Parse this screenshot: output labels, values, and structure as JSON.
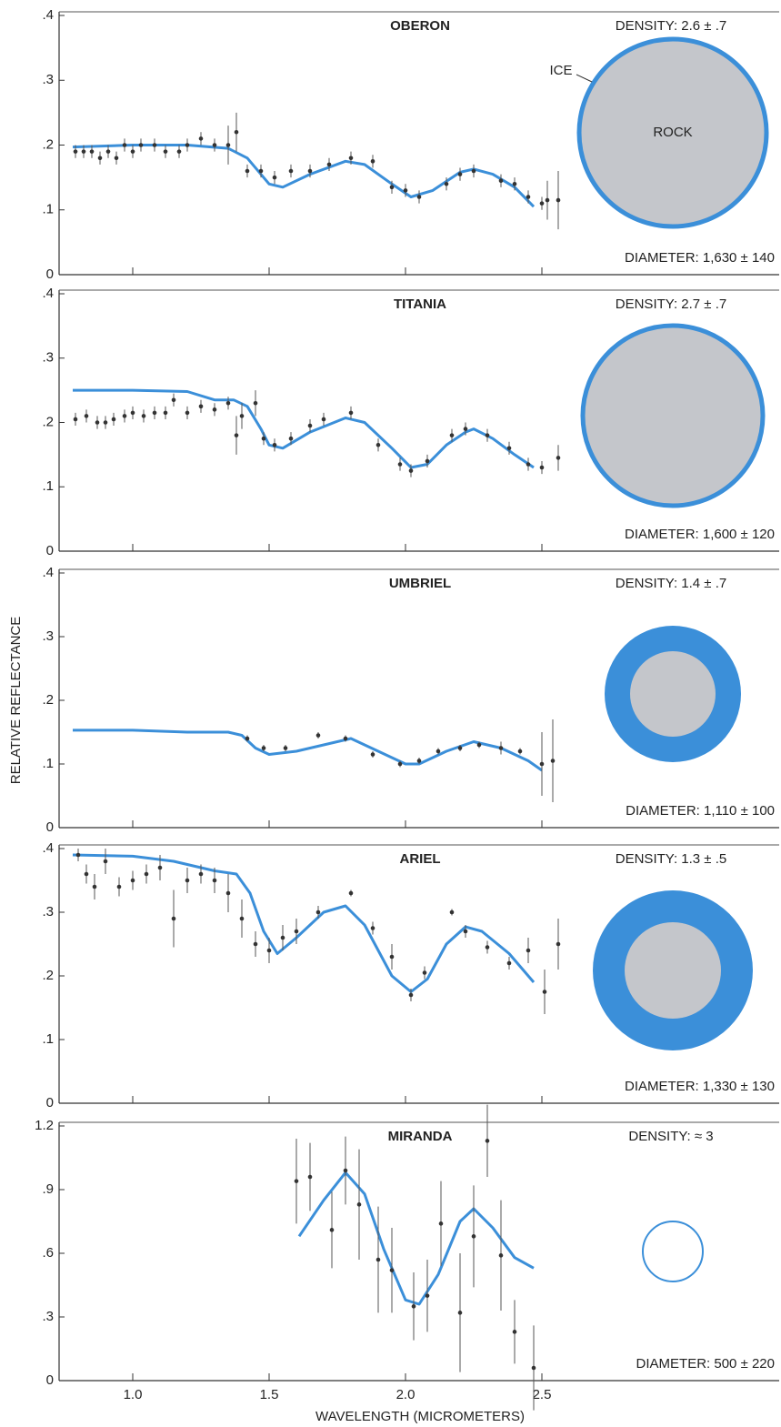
{
  "ylabel": "RELATIVE REFLECTANCE",
  "xlabel": "WAVELENGTH (MICROMETERS)",
  "chart_data": [
    {
      "type": "line",
      "title": "OBERON",
      "density": "DENSITY: 2.6 ± .7",
      "diameter": "DIAMETER: 1,630 ± 140",
      "annotations": [
        "ICE",
        "ROCK"
      ],
      "xlim": [
        0.73,
        3.37
      ],
      "ylim": [
        0,
        0.4
      ],
      "xticks": [
        1,
        1.5,
        2,
        2.5
      ],
      "yticks": [
        0,
        {
          "value": 0.1,
          "label": ".1"
        },
        {
          "value": 0.2,
          "label": ".2"
        },
        {
          "value": 0.3,
          "label": ".3"
        },
        {
          "value": 0.4,
          "label": ".4"
        }
      ],
      "series": [
        {
          "type": "line",
          "color": "#3b8fd9",
          "x": [
            0.78,
            1.0,
            1.2,
            1.35,
            1.42,
            1.5,
            1.55,
            1.65,
            1.78,
            1.85,
            1.95,
            2.02,
            2.1,
            2.2,
            2.25,
            2.32,
            2.4,
            2.47
          ],
          "values": [
            0.197,
            0.2,
            0.2,
            0.195,
            0.18,
            0.14,
            0.135,
            0.155,
            0.175,
            0.17,
            0.14,
            0.12,
            0.13,
            0.158,
            0.163,
            0.155,
            0.135,
            0.105
          ]
        },
        {
          "type": "scatter",
          "color": "#333333",
          "x": [
            0.79,
            0.82,
            0.85,
            0.88,
            0.91,
            0.94,
            0.97,
            1.0,
            1.03,
            1.08,
            1.12,
            1.17,
            1.2,
            1.25,
            1.3,
            1.35,
            1.38,
            1.42,
            1.47,
            1.52,
            1.58,
            1.65,
            1.72,
            1.8,
            1.88,
            1.95,
            2.0,
            2.05,
            2.15,
            2.2,
            2.25,
            2.35,
            2.4,
            2.45,
            2.5,
            2.52,
            2.56
          ],
          "values": [
            0.19,
            0.19,
            0.19,
            0.18,
            0.19,
            0.18,
            0.2,
            0.19,
            0.2,
            0.2,
            0.19,
            0.19,
            0.2,
            0.21,
            0.2,
            0.2,
            0.22,
            0.16,
            0.16,
            0.15,
            0.16,
            0.16,
            0.17,
            0.18,
            0.175,
            0.135,
            0.13,
            0.12,
            0.14,
            0.155,
            0.16,
            0.145,
            0.14,
            0.12,
            0.11,
            0.115,
            0.115
          ],
          "errors": [
            0.01,
            0.01,
            0.01,
            0.01,
            0.01,
            0.01,
            0.01,
            0.01,
            0.01,
            0.01,
            0.01,
            0.01,
            0.01,
            0.01,
            0.01,
            0.03,
            0.03,
            0.01,
            0.01,
            0.01,
            0.01,
            0.01,
            0.01,
            0.01,
            0.01,
            0.01,
            0.01,
            0.01,
            0.01,
            0.01,
            0.01,
            0.01,
            0.01,
            0.01,
            0.01,
            0.03,
            0.045
          ]
        }
      ]
    },
    {
      "type": "line",
      "title": "TITANIA",
      "density": "DENSITY: 2.7 ± .7",
      "diameter": "DIAMETER: 1,600 ± 120",
      "xlim": [
        0.73,
        3.37
      ],
      "ylim": [
        0,
        0.4
      ],
      "xticks": [
        1,
        1.5,
        2,
        2.5
      ],
      "yticks": [
        0,
        {
          "value": 0.1,
          "label": ".1"
        },
        {
          "value": 0.2,
          "label": ".2"
        },
        {
          "value": 0.3,
          "label": ".3"
        },
        {
          "value": 0.4,
          "label": ".4"
        }
      ],
      "series": [
        {
          "type": "line",
          "color": "#3b8fd9",
          "x": [
            0.78,
            1.0,
            1.2,
            1.3,
            1.37,
            1.42,
            1.47,
            1.5,
            1.55,
            1.65,
            1.78,
            1.85,
            1.95,
            2.02,
            2.08,
            2.15,
            2.22,
            2.25,
            2.32,
            2.4,
            2.47
          ],
          "values": [
            0.25,
            0.25,
            0.248,
            0.235,
            0.235,
            0.225,
            0.19,
            0.165,
            0.16,
            0.185,
            0.207,
            0.2,
            0.16,
            0.13,
            0.135,
            0.165,
            0.185,
            0.19,
            0.175,
            0.15,
            0.13
          ]
        },
        {
          "type": "scatter",
          "color": "#333333",
          "x": [
            0.79,
            0.83,
            0.87,
            0.9,
            0.93,
            0.97,
            1.0,
            1.04,
            1.08,
            1.12,
            1.15,
            1.2,
            1.25,
            1.3,
            1.35,
            1.38,
            1.4,
            1.45,
            1.48,
            1.52,
            1.58,
            1.65,
            1.7,
            1.8,
            1.9,
            1.98,
            2.02,
            2.08,
            2.17,
            2.22,
            2.3,
            2.38,
            2.45,
            2.5,
            2.56
          ],
          "values": [
            0.205,
            0.21,
            0.2,
            0.2,
            0.205,
            0.21,
            0.215,
            0.21,
            0.215,
            0.215,
            0.235,
            0.215,
            0.225,
            0.22,
            0.23,
            0.18,
            0.21,
            0.23,
            0.175,
            0.165,
            0.175,
            0.195,
            0.205,
            0.215,
            0.165,
            0.135,
            0.125,
            0.14,
            0.18,
            0.19,
            0.18,
            0.16,
            0.135,
            0.13,
            0.145
          ],
          "errors": [
            0.01,
            0.01,
            0.01,
            0.01,
            0.01,
            0.01,
            0.01,
            0.01,
            0.01,
            0.01,
            0.01,
            0.01,
            0.01,
            0.01,
            0.01,
            0.03,
            0.02,
            0.02,
            0.01,
            0.01,
            0.01,
            0.01,
            0.01,
            0.01,
            0.01,
            0.01,
            0.01,
            0.01,
            0.01,
            0.01,
            0.01,
            0.01,
            0.01,
            0.01,
            0.02
          ]
        }
      ]
    },
    {
      "type": "line",
      "title": "UMBRIEL",
      "density": "DENSITY: 1.4 ± .7",
      "diameter": "DIAMETER: 1,110 ± 100",
      "xlim": [
        0.73,
        3.37
      ],
      "ylim": [
        0,
        0.4
      ],
      "xticks": [
        1,
        1.5,
        2,
        2.5
      ],
      "yticks": [
        0,
        {
          "value": 0.1,
          "label": ".1"
        },
        {
          "value": 0.2,
          "label": ".2"
        },
        {
          "value": 0.3,
          "label": ".3"
        },
        {
          "value": 0.4,
          "label": ".4"
        }
      ],
      "series": [
        {
          "type": "line",
          "color": "#3b8fd9",
          "x": [
            0.78,
            1.0,
            1.2,
            1.35,
            1.4,
            1.45,
            1.5,
            1.6,
            1.8,
            1.9,
            2.0,
            2.05,
            2.15,
            2.25,
            2.35,
            2.45,
            2.5
          ],
          "values": [
            0.153,
            0.153,
            0.15,
            0.15,
            0.145,
            0.125,
            0.115,
            0.12,
            0.14,
            0.12,
            0.1,
            0.1,
            0.12,
            0.135,
            0.125,
            0.105,
            0.09
          ]
        },
        {
          "type": "scatter",
          "color": "#333333",
          "x": [
            1.42,
            1.48,
            1.56,
            1.68,
            1.78,
            1.88,
            1.98,
            2.05,
            2.12,
            2.2,
            2.27,
            2.35,
            2.42,
            2.5,
            2.54
          ],
          "values": [
            0.14,
            0.125,
            0.125,
            0.145,
            0.14,
            0.115,
            0.1,
            0.105,
            0.12,
            0.125,
            0.13,
            0.125,
            0.12,
            0.1,
            0.105
          ],
          "errors": [
            0.005,
            0.005,
            0.005,
            0.005,
            0.005,
            0.005,
            0.005,
            0.005,
            0.005,
            0.005,
            0.005,
            0.01,
            0.005,
            0.05,
            0.065
          ]
        }
      ]
    },
    {
      "type": "line",
      "title": "ARIEL",
      "density": "DENSITY: 1.3 ± .5",
      "diameter": "DIAMETER: 1,330 ± 130",
      "xlim": [
        0.73,
        3.37
      ],
      "ylim": [
        0,
        0.4
      ],
      "xticks": [
        1,
        1.5,
        2,
        2.5
      ],
      "yticks": [
        0,
        {
          "value": 0.1,
          "label": ".1"
        },
        {
          "value": 0.2,
          "label": ".2"
        },
        {
          "value": 0.3,
          "label": ".3"
        },
        {
          "value": 0.4,
          "label": ".4"
        }
      ],
      "series": [
        {
          "type": "line",
          "color": "#3b8fd9",
          "x": [
            0.78,
            1.0,
            1.15,
            1.3,
            1.38,
            1.43,
            1.48,
            1.53,
            1.6,
            1.7,
            1.78,
            1.85,
            1.95,
            2.02,
            2.08,
            2.15,
            2.22,
            2.28,
            2.38,
            2.47
          ],
          "values": [
            0.39,
            0.388,
            0.38,
            0.365,
            0.36,
            0.33,
            0.27,
            0.235,
            0.26,
            0.3,
            0.31,
            0.28,
            0.2,
            0.175,
            0.195,
            0.25,
            0.277,
            0.27,
            0.235,
            0.19
          ]
        },
        {
          "type": "scatter",
          "color": "#333333",
          "x": [
            0.8,
            0.83,
            0.86,
            0.9,
            0.95,
            1.0,
            1.05,
            1.1,
            1.15,
            1.2,
            1.25,
            1.3,
            1.35,
            1.4,
            1.45,
            1.5,
            1.55,
            1.6,
            1.68,
            1.8,
            1.88,
            1.95,
            2.02,
            2.07,
            2.17,
            2.22,
            2.3,
            2.38,
            2.45,
            2.51,
            2.56
          ],
          "values": [
            0.39,
            0.36,
            0.34,
            0.38,
            0.34,
            0.35,
            0.36,
            0.37,
            0.29,
            0.35,
            0.36,
            0.35,
            0.33,
            0.29,
            0.25,
            0.24,
            0.26,
            0.27,
            0.3,
            0.33,
            0.275,
            0.23,
            0.17,
            0.205,
            0.3,
            0.27,
            0.245,
            0.22,
            0.24,
            0.175,
            0.25
          ],
          "errors": [
            0.01,
            0.015,
            0.02,
            0.02,
            0.015,
            0.015,
            0.015,
            0.02,
            0.045,
            0.02,
            0.015,
            0.02,
            0.03,
            0.03,
            0.02,
            0.02,
            0.02,
            0.02,
            0.01,
            0.005,
            0.01,
            0.02,
            0.01,
            0.01,
            0.005,
            0.01,
            0.01,
            0.01,
            0.02,
            0.035,
            0.04
          ]
        }
      ]
    },
    {
      "type": "line",
      "title": "MIRANDA",
      "density": "DENSITY: ≈ 3",
      "diameter": "DIAMETER: 500 ± 220",
      "xlim": [
        0.73,
        3.37
      ],
      "ylim": [
        0,
        1.2
      ],
      "xticks": [
        {
          "value": 1,
          "label": "1.0"
        },
        1.5,
        {
          "value": 2,
          "label": "2.0"
        },
        2.5
      ],
      "yticks": [
        0,
        {
          "value": 0.3,
          "label": ".3"
        },
        {
          "value": 0.6,
          "label": ".6"
        },
        {
          "value": 0.9,
          "label": ".9"
        },
        1.2
      ],
      "series": [
        {
          "type": "line",
          "color": "#3b8fd9",
          "x": [
            1.61,
            1.7,
            1.78,
            1.85,
            1.92,
            2.0,
            2.05,
            2.12,
            2.2,
            2.25,
            2.32,
            2.4,
            2.47
          ],
          "values": [
            0.68,
            0.85,
            0.98,
            0.88,
            0.62,
            0.38,
            0.36,
            0.5,
            0.75,
            0.81,
            0.72,
            0.58,
            0.53
          ]
        },
        {
          "type": "scatter",
          "color": "#333333",
          "x": [
            1.6,
            1.65,
            1.73,
            1.78,
            1.83,
            1.9,
            1.95,
            2.03,
            2.08,
            2.13,
            2.2,
            2.25,
            2.3,
            2.35,
            2.4,
            2.47
          ],
          "values": [
            0.94,
            0.96,
            0.71,
            0.99,
            0.83,
            0.57,
            0.52,
            0.35,
            0.4,
            0.74,
            0.32,
            0.68,
            1.13,
            0.59,
            0.23,
            0.06
          ],
          "errors": [
            0.2,
            0.16,
            0.18,
            0.16,
            0.26,
            0.25,
            0.2,
            0.16,
            0.17,
            0.2,
            0.28,
            0.24,
            0.17,
            0.26,
            0.15,
            0.2
          ]
        }
      ]
    }
  ]
}
